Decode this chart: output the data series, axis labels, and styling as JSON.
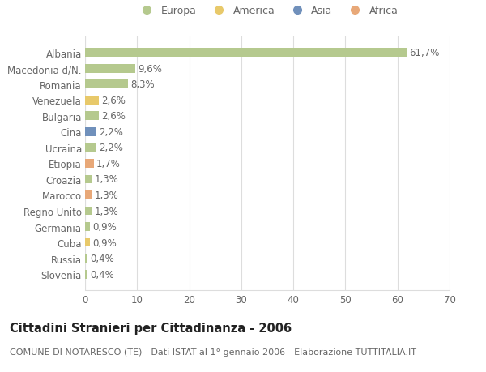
{
  "title": "Cittadini Stranieri per Cittadinanza - 2006",
  "subtitle": "COMUNE DI NOTARESCO (TE) - Dati ISTAT al 1° gennaio 2006 - Elaborazione TUTTITALIA.IT",
  "categories": [
    "Albania",
    "Macedonia d/N.",
    "Romania",
    "Venezuela",
    "Bulgaria",
    "Cina",
    "Ucraina",
    "Etiopia",
    "Croazia",
    "Marocco",
    "Regno Unito",
    "Germania",
    "Cuba",
    "Russia",
    "Slovenia"
  ],
  "values": [
    61.7,
    9.6,
    8.3,
    2.6,
    2.6,
    2.2,
    2.2,
    1.7,
    1.3,
    1.3,
    1.3,
    0.9,
    0.9,
    0.4,
    0.4
  ],
  "labels": [
    "61,7%",
    "9,6%",
    "8,3%",
    "2,6%",
    "2,6%",
    "2,2%",
    "2,2%",
    "1,7%",
    "1,3%",
    "1,3%",
    "1,3%",
    "0,9%",
    "0,9%",
    "0,4%",
    "0,4%"
  ],
  "continents": [
    "Europa",
    "Europa",
    "Europa",
    "America",
    "Europa",
    "Asia",
    "Europa",
    "Africa",
    "Europa",
    "Africa",
    "Europa",
    "Europa",
    "America",
    "Europa",
    "Europa"
  ],
  "continent_colors": {
    "Europa": "#b5c98e",
    "America": "#e8c96a",
    "Asia": "#7090bb",
    "Africa": "#e8a878"
  },
  "legend_order": [
    "Europa",
    "America",
    "Asia",
    "Africa"
  ],
  "xlim": [
    0,
    70
  ],
  "xticks": [
    0,
    10,
    20,
    30,
    40,
    50,
    60,
    70
  ],
  "background_color": "#ffffff",
  "grid_color": "#dddddd",
  "bar_height": 0.55,
  "label_fontsize": 8.5,
  "tick_fontsize": 8.5,
  "title_fontsize": 10.5,
  "subtitle_fontsize": 8,
  "legend_fontsize": 9
}
